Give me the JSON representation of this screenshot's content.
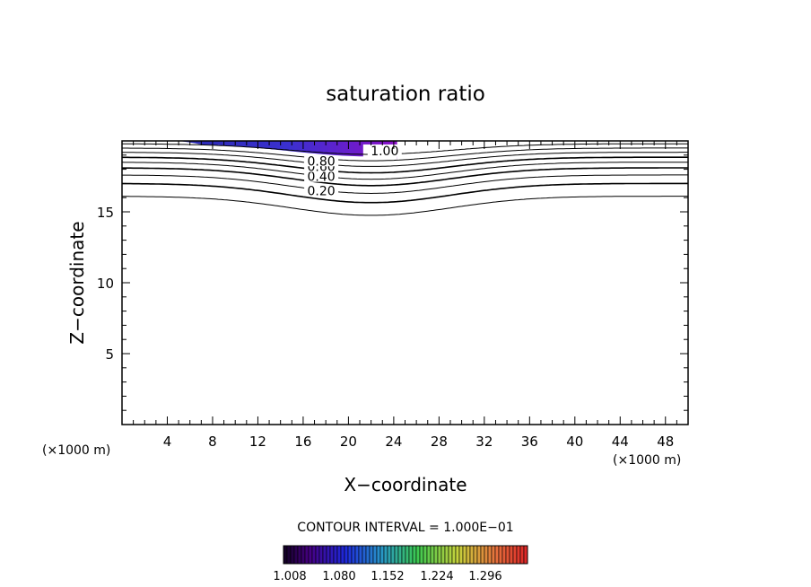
{
  "chart_data": {
    "type": "contour",
    "title": "saturation ratio",
    "xlabel": "X−coordinate",
    "ylabel": "Z−coordinate",
    "x_units": "(×1000 m)",
    "y_units": "(×1000 m)",
    "xlim": [
      0,
      50
    ],
    "ylim": [
      0,
      20
    ],
    "x_ticks": [
      "4",
      "8",
      "12",
      "16",
      "20",
      "24",
      "28",
      "32",
      "36",
      "40",
      "44",
      "48"
    ],
    "y_ticks": [
      "5",
      "10",
      "15"
    ],
    "contour_interval": "CONTOUR INTERVAL = 1.000E−01",
    "contour_labels": [
      {
        "text": "0.20",
        "x": 17.6,
        "z": 16.3
      },
      {
        "text": "0.40",
        "x": 17.6,
        "z": 17.3
      },
      {
        "text": "0.60",
        "x": 17.6,
        "z": 18.0
      },
      {
        "text": "0.80",
        "x": 17.6,
        "z": 18.4
      },
      {
        "text": "1.00",
        "x": 23.2,
        "z": 19.1
      }
    ],
    "colorbar": {
      "colormap": "rainbow (black-purple-blue-green-yellow-red)",
      "labels": [
        "1.008",
        "1.080",
        "1.152",
        "1.224",
        "1.296"
      ]
    },
    "colors": {
      "fill_low": "#3030c0",
      "fill_high": "#8a10c8",
      "line": "#000000"
    }
  }
}
